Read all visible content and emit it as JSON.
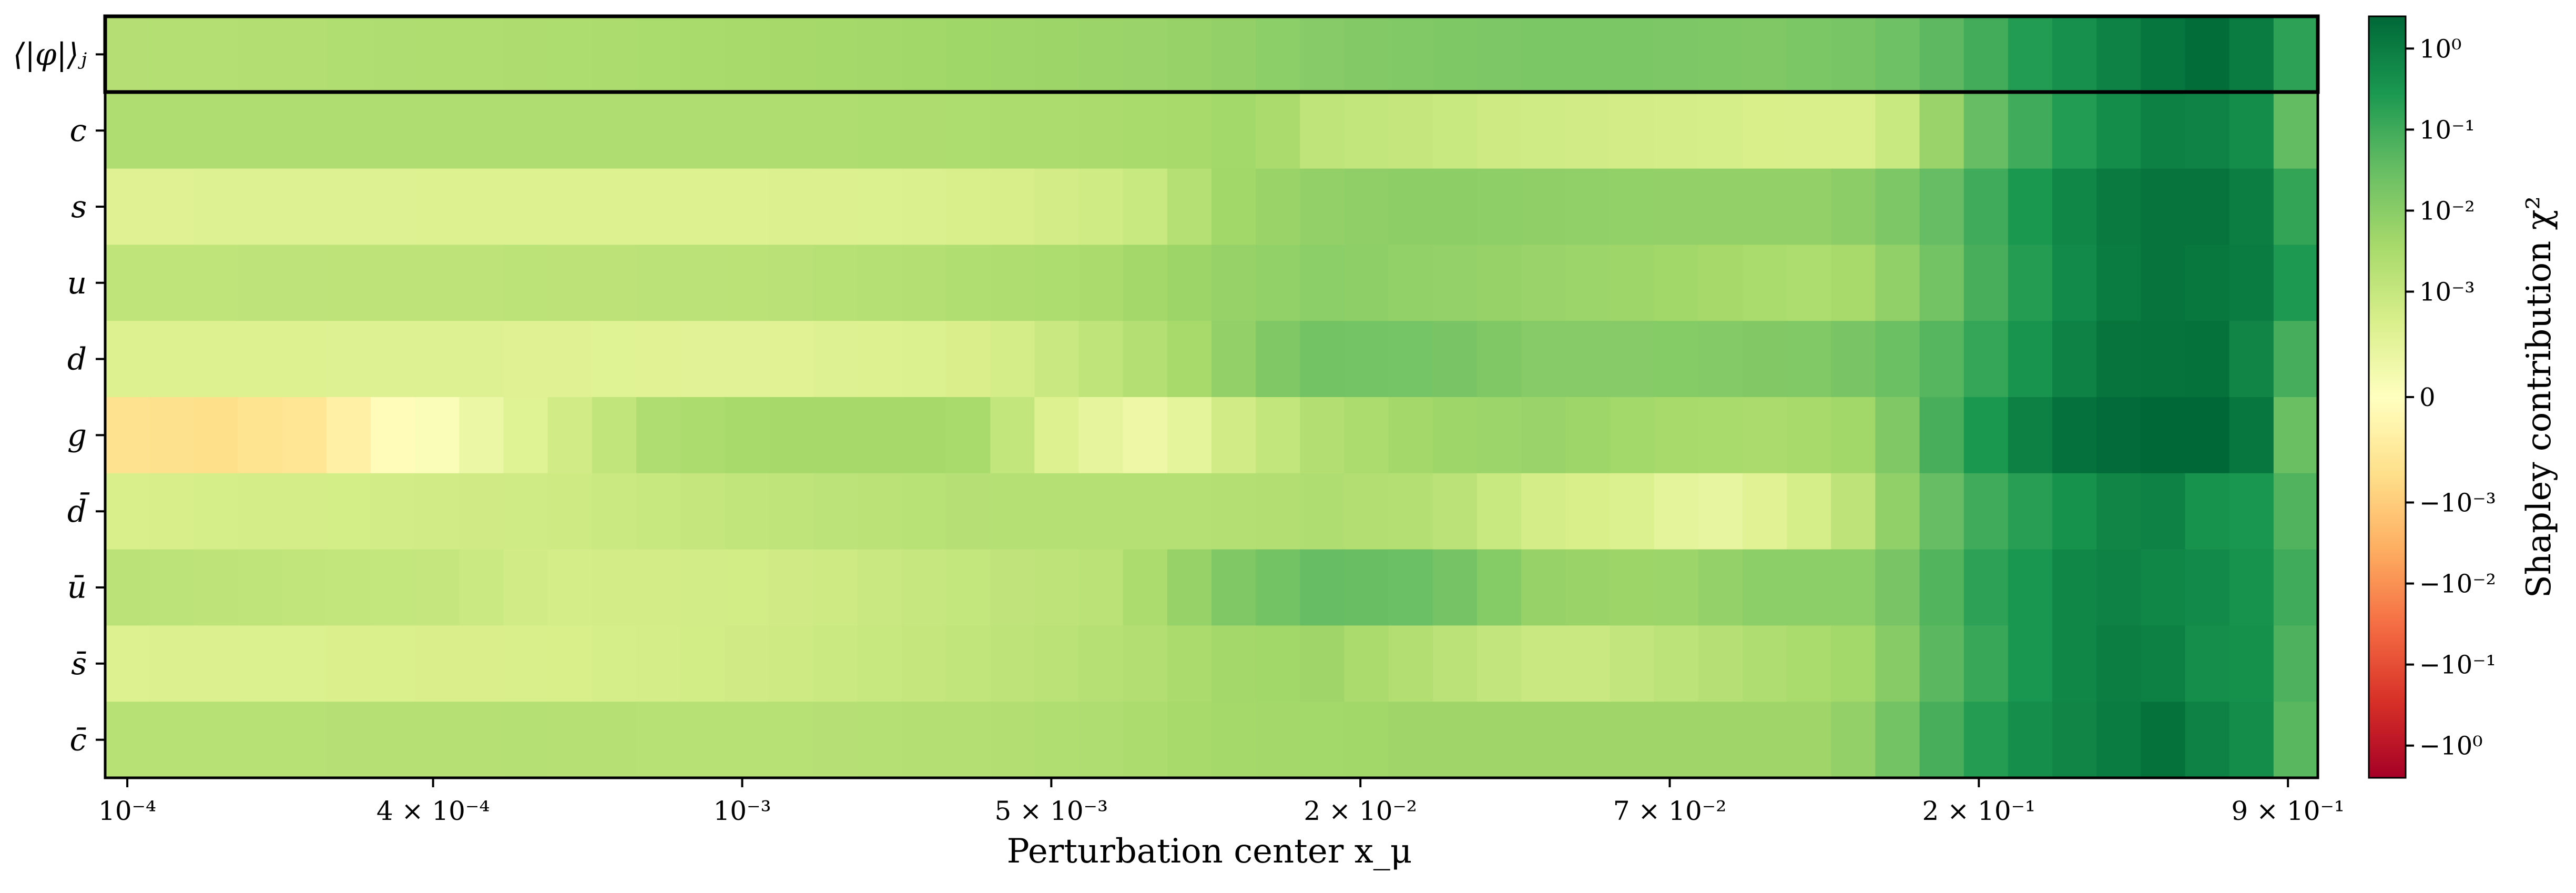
{
  "chart_data": {
    "type": "heatmap",
    "xlabel": "Perturbation center x_μ",
    "colorbar_label": "Shapley contribution χ²",
    "x_tick_labels": [
      {
        "x": 0.0001,
        "label": "10⁻⁴"
      },
      {
        "x": 0.0004,
        "label": "4 × 10⁻⁴"
      },
      {
        "x": 0.001,
        "label": "10⁻³"
      },
      {
        "x": 0.005,
        "label": "5 × 10⁻³"
      },
      {
        "x": 0.02,
        "label": "2 × 10⁻²"
      },
      {
        "x": 0.07,
        "label": "7 × 10⁻²"
      },
      {
        "x": 0.2,
        "label": "2 × 10⁻¹"
      },
      {
        "x": 0.9,
        "label": "9 × 10⁻¹"
      }
    ],
    "x_range": [
      8.5e-05,
      1.0
    ],
    "x_scale": "mixed (log below 0.1, linear above)",
    "rows": [
      "⟨|φ|⟩ⱼ",
      "c",
      "s",
      "u",
      "d",
      "g",
      "d̄",
      "ū",
      "s̄",
      "c̄"
    ],
    "highlighted_row": "⟨|φ|⟩ⱼ",
    "colorbar": {
      "scale": "symlog",
      "colormap": "RdYlGn",
      "ticks": [
        {
          "v": 1,
          "label": "10⁰"
        },
        {
          "v": 0.1,
          "label": "10⁻¹"
        },
        {
          "v": 0.01,
          "label": "10⁻²"
        },
        {
          "v": 0.001,
          "label": "10⁻³"
        },
        {
          "v": 0,
          "label": "0"
        },
        {
          "v": -0.001,
          "label": "−10⁻³"
        },
        {
          "v": -0.01,
          "label": "−10⁻²"
        },
        {
          "v": -0.1,
          "label": "−10⁻¹"
        },
        {
          "v": -1,
          "label": "−10⁰"
        }
      ],
      "range": [
        -2.5,
        2.5
      ]
    },
    "column_x_fractions": [
      0.0,
      0.02,
      0.04,
      0.06,
      0.08,
      0.1,
      0.12,
      0.14,
      0.16,
      0.18,
      0.2,
      0.22,
      0.24,
      0.26,
      0.28,
      0.3,
      0.32,
      0.34,
      0.36,
      0.38,
      0.4,
      0.42,
      0.44,
      0.46,
      0.48,
      0.5,
      0.52,
      0.54,
      0.56,
      0.58,
      0.6,
      0.62,
      0.64,
      0.66,
      0.68,
      0.7,
      0.72,
      0.74,
      0.76,
      0.78,
      0.8,
      0.82,
      0.84,
      0.86,
      0.88,
      0.9,
      0.92,
      0.94,
      0.96,
      0.98,
      1.0
    ],
    "z_scale_note": "z values expressed as signed log-fraction of colorbar (0 = center, ±1 = ends)",
    "z_profiles": {
      "⟨|φ|⟩ⱼ": [
        [
          0,
          0.34
        ],
        [
          0.2,
          0.37
        ],
        [
          0.4,
          0.42
        ],
        [
          0.5,
          0.45
        ],
        [
          0.55,
          0.5
        ],
        [
          0.6,
          0.52
        ],
        [
          0.65,
          0.53
        ],
        [
          0.7,
          0.53
        ],
        [
          0.75,
          0.52
        ],
        [
          0.8,
          0.55
        ],
        [
          0.82,
          0.6
        ],
        [
          0.84,
          0.65
        ],
        [
          0.87,
          0.78
        ],
        [
          0.9,
          0.86
        ],
        [
          0.92,
          0.93
        ],
        [
          0.95,
          0.98
        ],
        [
          0.97,
          0.92
        ],
        [
          0.985,
          0.85
        ],
        [
          1.0,
          0.55
        ]
      ],
      "c": [
        [
          0,
          0.36
        ],
        [
          0.3,
          0.36
        ],
        [
          0.45,
          0.38
        ],
        [
          0.5,
          0.4
        ],
        [
          0.52,
          0.42
        ],
        [
          0.55,
          0.3
        ],
        [
          0.6,
          0.28
        ],
        [
          0.62,
          0.25
        ],
        [
          0.7,
          0.22
        ],
        [
          0.76,
          0.2
        ],
        [
          0.8,
          0.2
        ],
        [
          0.82,
          0.33
        ],
        [
          0.84,
          0.55
        ],
        [
          0.87,
          0.7
        ],
        [
          0.9,
          0.82
        ],
        [
          0.93,
          0.9
        ],
        [
          0.96,
          0.88
        ],
        [
          0.985,
          0.8
        ],
        [
          1.0,
          0.22
        ]
      ],
      "s": [
        [
          0,
          0.17
        ],
        [
          0.3,
          0.18
        ],
        [
          0.4,
          0.2
        ],
        [
          0.45,
          0.24
        ],
        [
          0.48,
          0.28
        ],
        [
          0.5,
          0.4
        ],
        [
          0.55,
          0.46
        ],
        [
          0.6,
          0.48
        ],
        [
          0.7,
          0.46
        ],
        [
          0.78,
          0.46
        ],
        [
          0.82,
          0.55
        ],
        [
          0.85,
          0.7
        ],
        [
          0.88,
          0.85
        ],
        [
          0.92,
          0.95
        ],
        [
          0.96,
          0.95
        ],
        [
          0.985,
          0.85
        ],
        [
          1.0,
          0.5
        ]
      ],
      "u": [
        [
          0,
          0.3
        ],
        [
          0.3,
          0.32
        ],
        [
          0.45,
          0.38
        ],
        [
          0.5,
          0.44
        ],
        [
          0.55,
          0.48
        ],
        [
          0.6,
          0.46
        ],
        [
          0.7,
          0.42
        ],
        [
          0.78,
          0.36
        ],
        [
          0.82,
          0.5
        ],
        [
          0.85,
          0.68
        ],
        [
          0.88,
          0.82
        ],
        [
          0.9,
          0.9
        ],
        [
          0.93,
          0.95
        ],
        [
          0.97,
          0.92
        ],
        [
          0.985,
          0.88
        ],
        [
          1.0,
          0.62
        ]
      ],
      "d": [
        [
          0,
          0.18
        ],
        [
          0.2,
          0.17
        ],
        [
          0.3,
          0.16
        ],
        [
          0.4,
          0.2
        ],
        [
          0.42,
          0.24
        ],
        [
          0.45,
          0.3
        ],
        [
          0.5,
          0.42
        ],
        [
          0.52,
          0.5
        ],
        [
          0.55,
          0.56
        ],
        [
          0.6,
          0.55
        ],
        [
          0.65,
          0.5
        ],
        [
          0.7,
          0.5
        ],
        [
          0.78,
          0.52
        ],
        [
          0.82,
          0.6
        ],
        [
          0.85,
          0.73
        ],
        [
          0.88,
          0.86
        ],
        [
          0.91,
          0.95
        ],
        [
          0.95,
          0.96
        ],
        [
          0.985,
          0.82
        ],
        [
          1.0,
          0.42
        ]
      ],
      "g": [
        [
          0,
          -0.18
        ],
        [
          0.05,
          -0.2
        ],
        [
          0.1,
          -0.15
        ],
        [
          0.12,
          -0.05
        ],
        [
          0.15,
          0.03
        ],
        [
          0.2,
          0.2
        ],
        [
          0.25,
          0.36
        ],
        [
          0.3,
          0.4
        ],
        [
          0.38,
          0.4
        ],
        [
          0.4,
          0.38
        ],
        [
          0.42,
          0.2
        ],
        [
          0.45,
          0.13
        ],
        [
          0.48,
          0.08
        ],
        [
          0.5,
          0.2
        ],
        [
          0.55,
          0.35
        ],
        [
          0.6,
          0.42
        ],
        [
          0.65,
          0.44
        ],
        [
          0.7,
          0.4
        ],
        [
          0.75,
          0.38
        ],
        [
          0.8,
          0.42
        ],
        [
          0.82,
          0.62
        ],
        [
          0.85,
          0.8
        ],
        [
          0.88,
          0.95
        ],
        [
          0.92,
          1.0
        ],
        [
          0.96,
          1.0
        ],
        [
          0.985,
          0.85
        ],
        [
          1.0,
          0.06
        ]
      ],
      "d̄": [
        [
          0,
          0.2
        ],
        [
          0.2,
          0.24
        ],
        [
          0.3,
          0.3
        ],
        [
          0.4,
          0.34
        ],
        [
          0.5,
          0.34
        ],
        [
          0.55,
          0.36
        ],
        [
          0.6,
          0.34
        ],
        [
          0.65,
          0.22
        ],
        [
          0.7,
          0.18
        ],
        [
          0.72,
          0.1
        ],
        [
          0.75,
          0.16
        ],
        [
          0.78,
          0.24
        ],
        [
          0.8,
          0.38
        ],
        [
          0.82,
          0.55
        ],
        [
          0.85,
          0.7
        ],
        [
          0.88,
          0.8
        ],
        [
          0.91,
          0.88
        ],
        [
          0.92,
          0.93
        ],
        [
          0.95,
          0.82
        ],
        [
          0.985,
          0.8
        ],
        [
          1.0,
          0.36
        ]
      ],
      "ū": [
        [
          0,
          0.32
        ],
        [
          0.15,
          0.28
        ],
        [
          0.2,
          0.22
        ],
        [
          0.3,
          0.23
        ],
        [
          0.38,
          0.28
        ],
        [
          0.45,
          0.32
        ],
        [
          0.48,
          0.4
        ],
        [
          0.5,
          0.5
        ],
        [
          0.55,
          0.6
        ],
        [
          0.6,
          0.58
        ],
        [
          0.65,
          0.45
        ],
        [
          0.7,
          0.42
        ],
        [
          0.75,
          0.48
        ],
        [
          0.8,
          0.48
        ],
        [
          0.82,
          0.6
        ],
        [
          0.85,
          0.75
        ],
        [
          0.9,
          0.9
        ],
        [
          0.95,
          0.86
        ],
        [
          0.97,
          0.82
        ],
        [
          0.98,
          0.95
        ],
        [
          1.0,
          0.45
        ]
      ],
      "s̄": [
        [
          0,
          0.18
        ],
        [
          0.2,
          0.2
        ],
        [
          0.3,
          0.24
        ],
        [
          0.4,
          0.3
        ],
        [
          0.48,
          0.36
        ],
        [
          0.5,
          0.4
        ],
        [
          0.55,
          0.42
        ],
        [
          0.62,
          0.3
        ],
        [
          0.66,
          0.25
        ],
        [
          0.7,
          0.3
        ],
        [
          0.75,
          0.36
        ],
        [
          0.8,
          0.42
        ],
        [
          0.82,
          0.58
        ],
        [
          0.85,
          0.72
        ],
        [
          0.88,
          0.85
        ],
        [
          0.92,
          0.93
        ],
        [
          0.95,
          0.84
        ],
        [
          0.985,
          0.82
        ],
        [
          1.0,
          0.36
        ]
      ],
      "c̄": [
        [
          0,
          0.33
        ],
        [
          0.2,
          0.34
        ],
        [
          0.3,
          0.33
        ],
        [
          0.45,
          0.36
        ],
        [
          0.5,
          0.4
        ],
        [
          0.6,
          0.42
        ],
        [
          0.7,
          0.42
        ],
        [
          0.78,
          0.42
        ],
        [
          0.8,
          0.5
        ],
        [
          0.83,
          0.68
        ],
        [
          0.86,
          0.82
        ],
        [
          0.9,
          0.9
        ],
        [
          0.93,
          0.96
        ],
        [
          0.96,
          0.86
        ],
        [
          0.985,
          0.82
        ],
        [
          1.0,
          0.26
        ]
      ]
    }
  }
}
